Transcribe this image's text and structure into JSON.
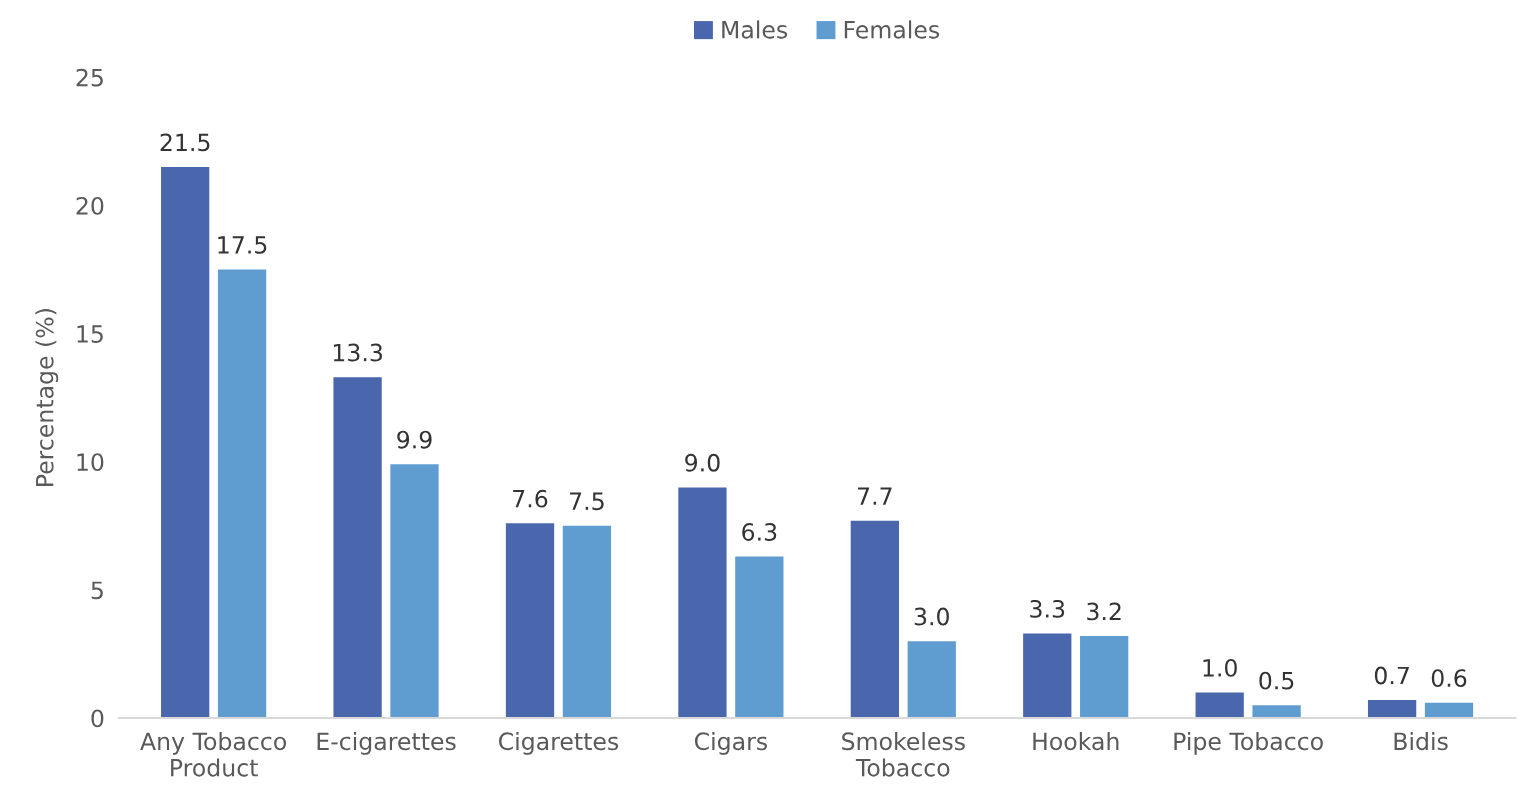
{
  "chart_data": {
    "type": "bar",
    "ylabel": "Percentage (%)",
    "categories": [
      "Any Tobacco\nProduct",
      "E-cigarettes",
      "Cigarettes",
      "Cigars",
      "Smokeless\nTobacco",
      "Hookah",
      "Pipe Tobacco",
      "Bidis"
    ],
    "series": [
      {
        "name": "Males",
        "color": "#4a66ac",
        "values": [
          21.5,
          13.3,
          7.6,
          9.0,
          7.7,
          3.3,
          1.0,
          0.7
        ],
        "value_labels": [
          "21.5",
          "13.3",
          "7.6",
          "9.0",
          "7.7",
          "3.3",
          "1.0",
          "0.7"
        ]
      },
      {
        "name": "Females",
        "color": "#5f9dd1",
        "values": [
          17.5,
          9.9,
          7.5,
          6.3,
          3.0,
          3.2,
          0.5,
          0.6
        ],
        "value_labels": [
          "17.5",
          "9.9",
          "7.5",
          "6.3",
          "3.0",
          "3.2",
          "0.5",
          "0.6"
        ]
      }
    ],
    "ylim": [
      0,
      25
    ],
    "yticks": [
      0,
      5,
      10,
      15,
      20,
      25
    ],
    "grid": false,
    "legend": "top"
  }
}
